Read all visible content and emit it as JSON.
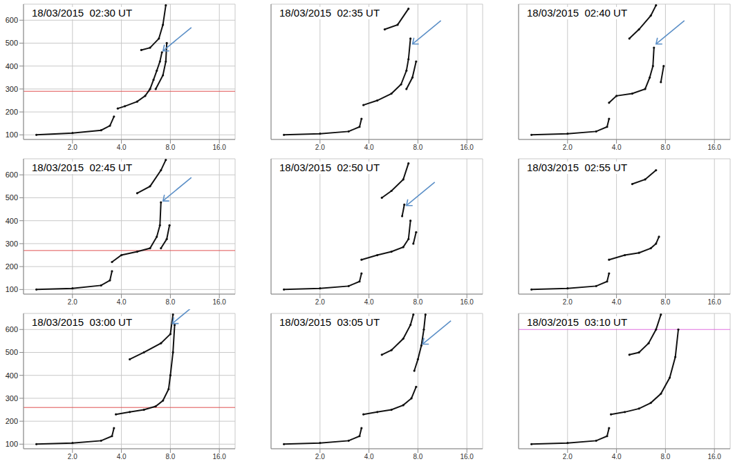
{
  "chart_data": [
    {
      "type": "scatter",
      "title": "18/03/2015  02:30 UT",
      "log": "x",
      "grid": true,
      "tick_labels": true,
      "color": "#111111",
      "marker": "dot",
      "line_style": "solid",
      "xlim": [
        1,
        20
      ],
      "ylim": [
        80,
        670
      ],
      "xticks": [
        {
          "value": 2,
          "label": "2.0"
        },
        {
          "value": 4,
          "label": "4.0"
        },
        {
          "value": 8,
          "label": "8.0"
        },
        {
          "value": 16,
          "label": "16.0"
        }
      ],
      "yticks": [
        100,
        200,
        300,
        400,
        500,
        600
      ],
      "series": [
        {
          "x": [
            1.2,
            2.0,
            3.0,
            3.4,
            3.6
          ],
          "y": [
            100,
            108,
            120,
            140,
            180
          ]
        },
        {
          "x": [
            3.8,
            4.2,
            5.0,
            5.6,
            6.0,
            6.3,
            6.6,
            6.9,
            7.1
          ],
          "y": [
            215,
            225,
            245,
            270,
            300,
            340,
            380,
            420,
            460
          ]
        },
        {
          "x": [
            6.5,
            7.2,
            7.5,
            7.6
          ],
          "y": [
            300,
            360,
            420,
            500
          ]
        },
        {
          "x": [
            5.3,
            6.0,
            6.8,
            7.2,
            7.5
          ],
          "y": [
            470,
            480,
            520,
            580,
            665
          ]
        }
      ],
      "reference_lines": [
        290
      ],
      "arrow_tip": [
        7.0,
        460
      ]
    },
    {
      "type": "scatter",
      "title": "18/03/2015  02:35 UT",
      "log": "x",
      "grid": true,
      "tick_labels": "x",
      "color": "#111111",
      "marker": "dot",
      "line_style": "solid",
      "xlim": [
        1,
        20
      ],
      "ylim": [
        80,
        670
      ],
      "xticks": [
        {
          "value": 2,
          "label": "2.0"
        },
        {
          "value": 4,
          "label": "4.0"
        },
        {
          "value": 8,
          "label": "8.0"
        },
        {
          "value": 16,
          "label": "16.0"
        }
      ],
      "yticks": [
        100,
        200,
        300,
        400,
        500,
        600
      ],
      "series": [
        {
          "x": [
            1.2,
            2.0,
            3.0,
            3.5,
            3.6
          ],
          "y": [
            100,
            105,
            115,
            135,
            170
          ]
        },
        {
          "x": [
            3.7,
            4.5,
            5.5,
            6.3,
            6.8,
            7.0,
            7.2
          ],
          "y": [
            230,
            250,
            280,
            320,
            380,
            430,
            520
          ]
        },
        {
          "x": [
            6.8,
            7.4,
            7.8
          ],
          "y": [
            300,
            350,
            420
          ]
        },
        {
          "x": [
            5.0,
            6.0,
            7.0
          ],
          "y": [
            560,
            580,
            650
          ]
        }
      ],
      "arrow_tip": [
        7.2,
        490
      ]
    },
    {
      "type": "scatter",
      "title": "18/03/2015  02:40 UT",
      "log": "x",
      "grid": true,
      "tick_labels": "x",
      "color": "#111111",
      "marker": "dot",
      "line_style": "solid",
      "xlim": [
        1,
        20
      ],
      "ylim": [
        80,
        670
      ],
      "xticks": [
        {
          "value": 2,
          "label": "2.0"
        },
        {
          "value": 4,
          "label": "4.0"
        },
        {
          "value": 8,
          "label": "8.0"
        },
        {
          "value": 16,
          "label": "16.0"
        }
      ],
      "yticks": [
        100,
        200,
        300,
        400,
        500,
        600
      ],
      "series": [
        {
          "x": [
            1.2,
            2.0,
            3.0,
            3.5,
            3.6
          ],
          "y": [
            100,
            105,
            115,
            135,
            170
          ]
        },
        {
          "x": [
            3.6,
            4.0,
            5.0,
            6.0,
            6.4,
            6.7,
            6.8
          ],
          "y": [
            240,
            270,
            280,
            300,
            350,
            400,
            480
          ]
        },
        {
          "x": [
            7.5,
            7.8
          ],
          "y": [
            330,
            400
          ]
        },
        {
          "x": [
            4.8,
            5.5,
            6.5,
            7.0
          ],
          "y": [
            520,
            560,
            620,
            665
          ]
        }
      ],
      "arrow_tip": [
        6.8,
        490
      ]
    },
    {
      "type": "scatter",
      "title": "18/03/2015  02:45 UT",
      "log": "x",
      "grid": true,
      "tick_labels": true,
      "color": "#111111",
      "marker": "dot",
      "line_style": "solid",
      "xlim": [
        1,
        20
      ],
      "ylim": [
        80,
        670
      ],
      "xticks": [
        {
          "value": 2,
          "label": "2.0"
        },
        {
          "value": 4,
          "label": "4.0"
        },
        {
          "value": 8,
          "label": "8.0"
        },
        {
          "value": 16,
          "label": "16.0"
        }
      ],
      "yticks": [
        100,
        200,
        300,
        400,
        500,
        600
      ],
      "series": [
        {
          "x": [
            1.2,
            2.0,
            3.0,
            3.4,
            3.5
          ],
          "y": [
            100,
            105,
            118,
            140,
            180
          ]
        },
        {
          "x": [
            3.5,
            4.0,
            5.0,
            6.0,
            6.6,
            6.9,
            7.0
          ],
          "y": [
            220,
            250,
            265,
            280,
            330,
            380,
            480
          ]
        },
        {
          "x": [
            7.0,
            7.6,
            7.9
          ],
          "y": [
            280,
            320,
            380
          ]
        },
        {
          "x": [
            5.0,
            6.0,
            7.0,
            7.5
          ],
          "y": [
            520,
            550,
            620,
            665
          ]
        }
      ],
      "reference_lines": [
        270
      ],
      "arrow_tip": [
        7.0,
        480
      ]
    },
    {
      "type": "scatter",
      "title": "18/03/2015  02:50 UT",
      "log": "x",
      "grid": true,
      "tick_labels": "x",
      "color": "#111111",
      "marker": "dot",
      "line_style": "solid",
      "xlim": [
        1,
        20
      ],
      "ylim": [
        80,
        670
      ],
      "xticks": [
        {
          "value": 2,
          "label": "2.0"
        },
        {
          "value": 4,
          "label": "4.0"
        },
        {
          "value": 8,
          "label": "8.0"
        },
        {
          "value": 16,
          "label": "16.0"
        }
      ],
      "yticks": [
        100,
        200,
        300,
        400,
        500,
        600
      ],
      "series": [
        {
          "x": [
            1.2,
            2.0,
            3.0,
            3.5,
            3.6
          ],
          "y": [
            100,
            105,
            115,
            135,
            170
          ]
        },
        {
          "x": [
            3.6,
            4.5,
            5.5,
            6.5,
            7.0,
            7.2
          ],
          "y": [
            230,
            250,
            265,
            285,
            320,
            400
          ]
        },
        {
          "x": [
            7.5,
            7.8
          ],
          "y": [
            300,
            350
          ]
        },
        {
          "x": [
            6.4,
            6.6
          ],
          "y": [
            420,
            470
          ]
        },
        {
          "x": [
            4.8,
            5.5,
            6.5,
            7.0
          ],
          "y": [
            500,
            530,
            580,
            650
          ]
        }
      ],
      "arrow_tip": [
        6.6,
        460
      ]
    },
    {
      "type": "scatter",
      "title": "18/03/2015  02:55 UT",
      "log": "x",
      "grid": true,
      "tick_labels": "x",
      "color": "#111111",
      "marker": "dot",
      "line_style": "solid",
      "xlim": [
        1,
        20
      ],
      "ylim": [
        80,
        670
      ],
      "xticks": [
        {
          "value": 2,
          "label": "2.0"
        },
        {
          "value": 4,
          "label": "4.0"
        },
        {
          "value": 8,
          "label": "8.0"
        },
        {
          "value": 16,
          "label": "16.0"
        }
      ],
      "yticks": [
        100,
        200,
        300,
        400,
        500,
        600
      ],
      "series": [
        {
          "x": [
            1.2,
            2.0,
            3.0,
            3.5,
            3.6
          ],
          "y": [
            100,
            105,
            115,
            135,
            170
          ]
        },
        {
          "x": [
            3.6,
            4.5,
            5.5,
            6.5,
            7.0,
            7.3
          ],
          "y": [
            230,
            250,
            260,
            280,
            300,
            330
          ]
        },
        {
          "x": [
            5.0,
            6.0,
            7.0
          ],
          "y": [
            560,
            580,
            620
          ]
        }
      ]
    },
    {
      "type": "scatter",
      "title": "18/03/2015  03:00 UT",
      "log": "x",
      "grid": true,
      "tick_labels": true,
      "color": "#111111",
      "marker": "dot",
      "line_style": "solid",
      "xlim": [
        1,
        20
      ],
      "ylim": [
        80,
        670
      ],
      "xticks": [
        {
          "value": 2,
          "label": "2.0"
        },
        {
          "value": 4,
          "label": "4.0"
        },
        {
          "value": 8,
          "label": "8.0"
        },
        {
          "value": 16,
          "label": "16.0"
        }
      ],
      "yticks": [
        100,
        200,
        300,
        400,
        500,
        600
      ],
      "series": [
        {
          "x": [
            1.2,
            2.0,
            3.0,
            3.5,
            3.6
          ],
          "y": [
            100,
            105,
            115,
            135,
            170
          ]
        },
        {
          "x": [
            3.7,
            4.5,
            5.5,
            6.5,
            7.2,
            7.8,
            8.0,
            8.3,
            8.5
          ],
          "y": [
            230,
            240,
            250,
            265,
            290,
            340,
            400,
            500,
            620
          ]
        },
        {
          "x": [
            4.5,
            5.5,
            7.0,
            8.0,
            8.3
          ],
          "y": [
            470,
            500,
            540,
            580,
            665
          ]
        }
      ],
      "reference_lines": [
        260
      ],
      "arrow_tip": [
        8.0,
        620
      ]
    },
    {
      "type": "scatter",
      "title": "18/03/2015  03:05 UT",
      "log": "x",
      "grid": true,
      "tick_labels": "x",
      "color": "#111111",
      "marker": "dot",
      "line_style": "solid",
      "xlim": [
        1,
        20
      ],
      "ylim": [
        80,
        670
      ],
      "xticks": [
        {
          "value": 2,
          "label": "2.0"
        },
        {
          "value": 4,
          "label": "4.0"
        },
        {
          "value": 8,
          "label": "8.0"
        },
        {
          "value": 16,
          "label": "16.0"
        }
      ],
      "yticks": [
        100,
        200,
        300,
        400,
        500,
        600
      ],
      "series": [
        {
          "x": [
            1.2,
            2.0,
            3.0,
            3.5,
            3.6
          ],
          "y": [
            100,
            105,
            115,
            135,
            170
          ]
        },
        {
          "x": [
            3.7,
            4.5,
            5.5,
            6.5,
            7.3,
            7.8
          ],
          "y": [
            230,
            240,
            250,
            270,
            300,
            350
          ]
        },
        {
          "x": [
            7.6,
            8.0,
            8.4,
            8.7,
            8.9
          ],
          "y": [
            420,
            470,
            530,
            600,
            665
          ]
        },
        {
          "x": [
            4.8,
            5.5,
            6.5,
            7.2,
            7.5
          ],
          "y": [
            490,
            510,
            560,
            620,
            665
          ]
        }
      ],
      "arrow_tip": [
        8.3,
        530
      ]
    },
    {
      "type": "scatter",
      "title": "18/03/2015  03:10 UT",
      "log": "x",
      "grid": true,
      "tick_labels": "x",
      "color": "#111111",
      "marker": "dot",
      "line_style": "solid",
      "xlim": [
        1,
        20
      ],
      "ylim": [
        80,
        670
      ],
      "xticks": [
        {
          "value": 2,
          "label": "2.0"
        },
        {
          "value": 4,
          "label": "4.0"
        },
        {
          "value": 8,
          "label": "8.0"
        },
        {
          "value": 16,
          "label": "16.0"
        }
      ],
      "yticks": [
        100,
        200,
        300,
        400,
        500,
        600
      ],
      "series": [
        {
          "x": [
            1.2,
            2.0,
            3.0,
            3.5,
            3.6
          ],
          "y": [
            100,
            105,
            115,
            135,
            170
          ]
        },
        {
          "x": [
            3.7,
            4.5,
            5.5,
            6.5,
            7.5,
            8.5,
            9.2,
            9.6
          ],
          "y": [
            230,
            240,
            255,
            280,
            320,
            390,
            480,
            600
          ]
        },
        {
          "x": [
            4.8,
            5.5,
            6.3,
            7.0,
            7.5
          ],
          "y": [
            490,
            500,
            540,
            600,
            665
          ]
        }
      ],
      "reference_lines": [
        600
      ]
    }
  ]
}
